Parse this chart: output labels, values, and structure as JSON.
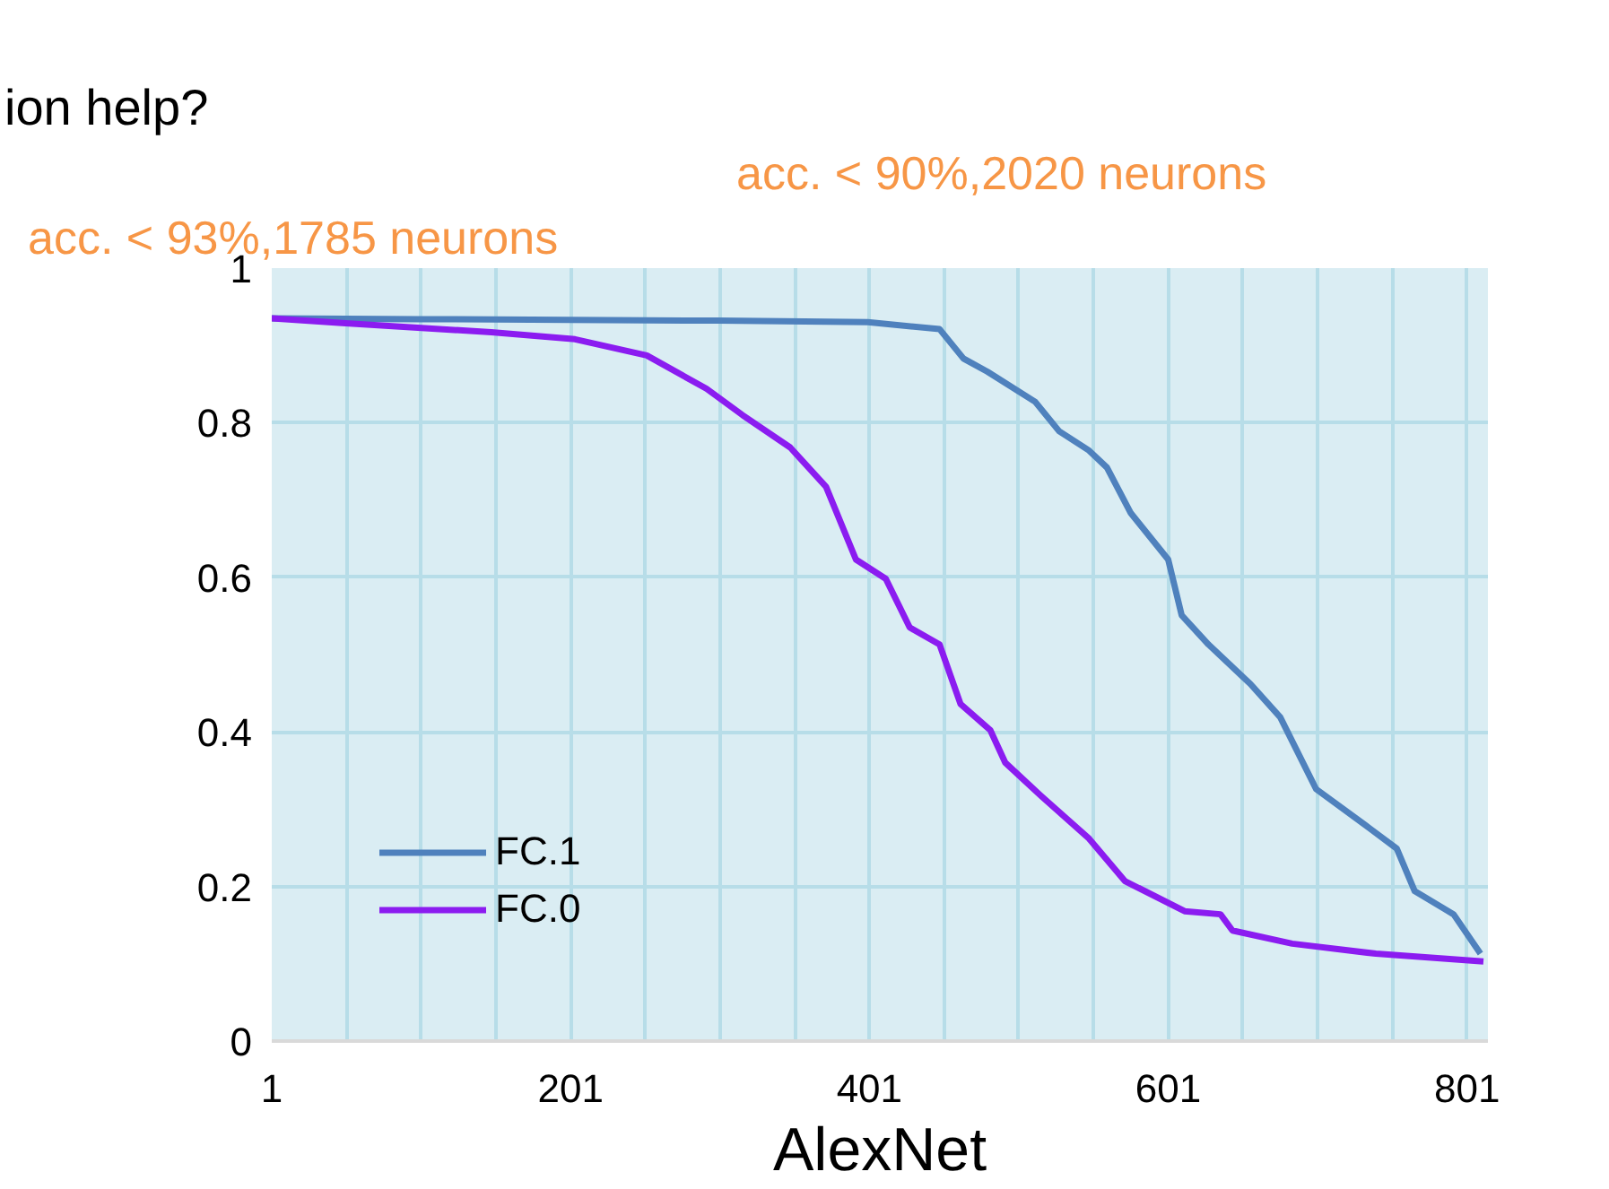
{
  "chart_data": {
    "type": "line",
    "title": "ion help?",
    "xlabel": "AlexNet",
    "annotations": [
      "acc. < 90%,2020 neurons",
      "acc. < 93%,1785 neurons"
    ],
    "xlim": [
      1,
      815
    ],
    "xticks": [
      1,
      {
        "value": 51,
        "label": null
      },
      {
        "value": 101,
        "label": null
      },
      {
        "value": 151,
        "label": null
      },
      201,
      {
        "value": 251,
        "label": null
      },
      {
        "value": 301,
        "label": null
      },
      {
        "value": 351,
        "label": null
      },
      401,
      {
        "value": 451,
        "label": null
      },
      {
        "value": 501,
        "label": null
      },
      {
        "value": 551,
        "label": null
      },
      601,
      {
        "value": 651,
        "label": null
      },
      {
        "value": 701,
        "label": null
      },
      {
        "value": 751,
        "label": null
      },
      801
    ],
    "ylim": [
      0,
      1
    ],
    "yticks": [
      0,
      0.2,
      0.4,
      0.6,
      0.8,
      1
    ],
    "grid": true,
    "legend": "bottom left",
    "series": [
      {
        "name": "FC.1",
        "color": "#4f81bd",
        "x": [
          1,
          100,
          200,
          300,
          400,
          448,
          464,
          480,
          512,
          528,
          548,
          560,
          576,
          601,
          610,
          628,
          656,
          676,
          700,
          736,
          754,
          766,
          792,
          810
        ],
        "values": [
          0.935,
          0.934,
          0.933,
          0.932,
          0.93,
          0.921,
          0.883,
          0.866,
          0.827,
          0.789,
          0.764,
          0.742,
          0.683,
          0.623,
          0.551,
          0.513,
          0.462,
          0.419,
          0.326,
          0.275,
          0.249,
          0.194,
          0.164,
          0.113
        ]
      },
      {
        "name": "FC.0",
        "color": "#8b1cf0",
        "x": [
          1,
          48,
          148,
          204,
          252,
          292,
          316,
          348,
          372,
          392,
          412,
          428,
          448,
          462,
          482,
          492,
          516,
          548,
          572,
          612,
          636,
          644,
          684,
          740,
          812
        ],
        "values": [
          0.935,
          0.929,
          0.917,
          0.908,
          0.887,
          0.844,
          0.81,
          0.768,
          0.717,
          0.623,
          0.598,
          0.535,
          0.513,
          0.436,
          0.402,
          0.36,
          0.317,
          0.262,
          0.207,
          0.168,
          0.164,
          0.143,
          0.126,
          0.113,
          0.103
        ]
      }
    ]
  }
}
